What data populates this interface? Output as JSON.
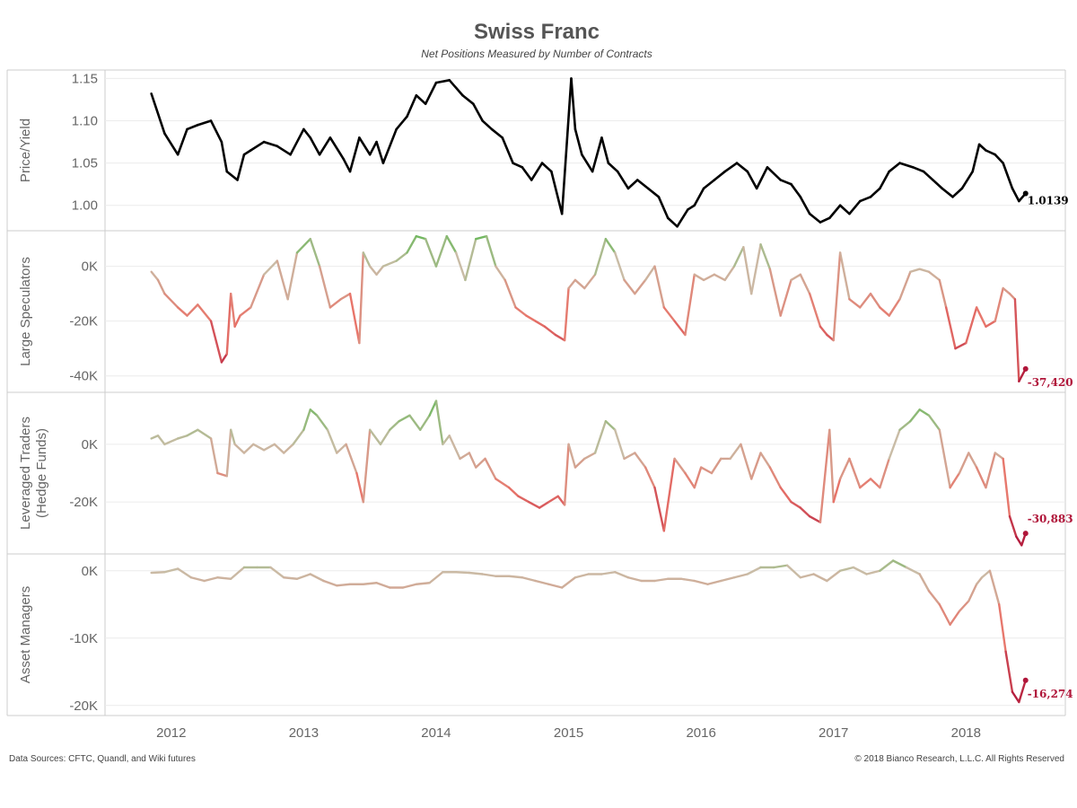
{
  "header": {
    "title": "Swiss Franc",
    "subtitle": "Net Positions Measured by Number of Contracts"
  },
  "footer": {
    "source": "Data Sources: CFTC, Quandl, and Wiki futures",
    "copyright": "© 2018 Bianco Research, L.L.C. All Rights Reserved"
  },
  "colors": {
    "price": "#000000",
    "positive": "#6db85c",
    "neutral": "#c9bca6",
    "negative": "#e8756a",
    "deep_negative": "#b0163a"
  },
  "chart_data": [
    {
      "type": "line",
      "ylabel": "Price/Yield",
      "ylim": [
        0.97,
        1.16
      ],
      "yticks": [
        1.0,
        1.05,
        1.1,
        1.15
      ],
      "ytick_labels": [
        "1.00",
        "1.05",
        "1.10",
        "1.15"
      ],
      "last_label": "1.0139",
      "color_mode": "solid",
      "series": [
        {
          "x": [
            2011.85,
            2011.95,
            2012.05,
            2012.12,
            2012.2,
            2012.3,
            2012.38,
            2012.42,
            2012.5,
            2012.55,
            2012.6,
            2012.7,
            2012.8,
            2012.9,
            2013.0,
            2013.05,
            2013.12,
            2013.2,
            2013.3,
            2013.35,
            2013.42,
            2013.5,
            2013.55,
            2013.6,
            2013.7,
            2013.78,
            2013.85,
            2013.92,
            2014.0,
            2014.1,
            2014.2,
            2014.28,
            2014.35,
            2014.42,
            2014.5,
            2014.58,
            2014.65,
            2014.72,
            2014.8,
            2014.87,
            2014.95,
            2015.02,
            2015.05,
            2015.1,
            2015.18,
            2015.25,
            2015.3,
            2015.37,
            2015.45,
            2015.52,
            2015.6,
            2015.68,
            2015.75,
            2015.82,
            2015.9,
            2015.95,
            2016.02,
            2016.1,
            2016.18,
            2016.27,
            2016.35,
            2016.42,
            2016.5,
            2016.6,
            2016.68,
            2016.75,
            2016.82,
            2016.9,
            2016.97,
            2017.05,
            2017.12,
            2017.2,
            2017.28,
            2017.35,
            2017.42,
            2017.5,
            2017.6,
            2017.68,
            2017.75,
            2017.82,
            2017.9,
            2017.97,
            2018.05,
            2018.1,
            2018.15,
            2018.22,
            2018.28,
            2018.35,
            2018.4,
            2018.45
          ],
          "y": [
            1.132,
            1.085,
            1.06,
            1.09,
            1.095,
            1.1,
            1.075,
            1.04,
            1.03,
            1.06,
            1.065,
            1.075,
            1.07,
            1.06,
            1.09,
            1.08,
            1.06,
            1.08,
            1.055,
            1.04,
            1.08,
            1.06,
            1.075,
            1.05,
            1.09,
            1.105,
            1.13,
            1.12,
            1.145,
            1.148,
            1.13,
            1.12,
            1.1,
            1.09,
            1.08,
            1.05,
            1.045,
            1.03,
            1.05,
            1.04,
            0.99,
            1.15,
            1.09,
            1.06,
            1.04,
            1.08,
            1.05,
            1.04,
            1.02,
            1.03,
            1.02,
            1.01,
            0.985,
            0.975,
            0.995,
            1.0,
            1.02,
            1.03,
            1.04,
            1.05,
            1.04,
            1.02,
            1.045,
            1.03,
            1.025,
            1.01,
            0.99,
            0.98,
            0.985,
            1.0,
            0.99,
            1.005,
            1.01,
            1.02,
            1.04,
            1.05,
            1.045,
            1.04,
            1.03,
            1.02,
            1.01,
            1.02,
            1.04,
            1.072,
            1.065,
            1.06,
            1.05,
            1.02,
            1.005,
            1.014
          ]
        }
      ]
    },
    {
      "type": "line",
      "ylabel": "Large Speculators",
      "ylim": [
        -46000,
        13000
      ],
      "yticks": [
        0,
        -20000,
        -40000
      ],
      "ytick_labels": [
        "0K",
        "-20K",
        "-40K"
      ],
      "last_label": "-37,420",
      "color_mode": "value",
      "series": [
        {
          "x": [
            2011.85,
            2011.9,
            2011.95,
            2012.05,
            2012.12,
            2012.2,
            2012.3,
            2012.38,
            2012.42,
            2012.45,
            2012.48,
            2012.52,
            2012.6,
            2012.7,
            2012.8,
            2012.88,
            2012.95,
            2013.05,
            2013.12,
            2013.2,
            2013.28,
            2013.35,
            2013.42,
            2013.45,
            2013.5,
            2013.55,
            2013.6,
            2013.7,
            2013.78,
            2013.85,
            2013.92,
            2014.0,
            2014.08,
            2014.15,
            2014.22,
            2014.3,
            2014.38,
            2014.45,
            2014.52,
            2014.6,
            2014.68,
            2014.75,
            2014.82,
            2014.9,
            2014.97,
            2015.0,
            2015.05,
            2015.12,
            2015.2,
            2015.28,
            2015.35,
            2015.42,
            2015.5,
            2015.58,
            2015.65,
            2015.72,
            2015.8,
            2015.88,
            2015.95,
            2016.02,
            2016.1,
            2016.18,
            2016.25,
            2016.32,
            2016.38,
            2016.45,
            2016.52,
            2016.6,
            2016.68,
            2016.75,
            2016.82,
            2016.9,
            2016.95,
            2017.0,
            2017.05,
            2017.12,
            2017.2,
            2017.28,
            2017.35,
            2017.42,
            2017.5,
            2017.58,
            2017.65,
            2017.72,
            2017.8,
            2017.85,
            2017.92,
            2018.0,
            2018.08,
            2018.15,
            2018.22,
            2018.28,
            2018.33,
            2018.37,
            2018.4,
            2018.45
          ],
          "y": [
            -2000,
            -5000,
            -10000,
            -15000,
            -18000,
            -14000,
            -20000,
            -35000,
            -32000,
            -10000,
            -22000,
            -18000,
            -15000,
            -3000,
            2000,
            -12000,
            5000,
            10000,
            0,
            -15000,
            -12000,
            -10000,
            -28000,
            5000,
            0,
            -3000,
            0,
            2000,
            5000,
            11000,
            10000,
            0,
            11000,
            5000,
            -5000,
            10000,
            11000,
            0,
            -5000,
            -15000,
            -18000,
            -20000,
            -22000,
            -25000,
            -27000,
            -8000,
            -5000,
            -8000,
            -3000,
            10000,
            5000,
            -5000,
            -10000,
            -5000,
            0,
            -15000,
            -20000,
            -25000,
            -3000,
            -5000,
            -3000,
            -5000,
            0,
            7000,
            -10000,
            8000,
            -1000,
            -18000,
            -5000,
            -3000,
            -10000,
            -22000,
            -25000,
            -27000,
            5000,
            -12000,
            -15000,
            -10000,
            -15000,
            -18000,
            -12000,
            -2000,
            -1000,
            -2000,
            -5000,
            -15000,
            -30000,
            -28000,
            -15000,
            -22000,
            -20000,
            -8000,
            -10000,
            -12000,
            -42000,
            -37420
          ]
        }
      ]
    },
    {
      "type": "line",
      "ylabel": "Leveraged Traders",
      "ylabel2": "(Hedge Funds)",
      "ylim": [
        -38000,
        18000
      ],
      "yticks": [
        0,
        -20000
      ],
      "ytick_labels": [
        "0K",
        "-20K"
      ],
      "last_label": "-30,883",
      "color_mode": "value",
      "series": [
        {
          "x": [
            2011.85,
            2011.9,
            2011.95,
            2012.05,
            2012.12,
            2012.2,
            2012.3,
            2012.35,
            2012.42,
            2012.45,
            2012.48,
            2012.55,
            2012.62,
            2012.7,
            2012.78,
            2012.85,
            2012.92,
            2013.0,
            2013.05,
            2013.1,
            2013.18,
            2013.25,
            2013.32,
            2013.4,
            2013.45,
            2013.5,
            2013.58,
            2013.65,
            2013.72,
            2013.8,
            2013.88,
            2013.95,
            2014.0,
            2014.05,
            2014.1,
            2014.18,
            2014.25,
            2014.3,
            2014.37,
            2014.45,
            2014.55,
            2014.62,
            2014.7,
            2014.78,
            2014.85,
            2014.92,
            2014.97,
            2015.0,
            2015.05,
            2015.12,
            2015.2,
            2015.28,
            2015.35,
            2015.42,
            2015.5,
            2015.58,
            2015.65,
            2015.72,
            2015.8,
            2015.88,
            2015.95,
            2016.0,
            2016.08,
            2016.15,
            2016.22,
            2016.3,
            2016.38,
            2016.45,
            2016.52,
            2016.6,
            2016.68,
            2016.75,
            2016.82,
            2016.9,
            2016.97,
            2017.0,
            2017.05,
            2017.12,
            2017.2,
            2017.28,
            2017.35,
            2017.42,
            2017.5,
            2017.58,
            2017.65,
            2017.72,
            2017.8,
            2017.88,
            2017.95,
            2018.02,
            2018.08,
            2018.15,
            2018.22,
            2018.28,
            2018.33,
            2018.38,
            2018.42,
            2018.45
          ],
          "y": [
            2000,
            3000,
            0,
            2000,
            3000,
            5000,
            2000,
            -10000,
            -11000,
            5000,
            0,
            -3000,
            0,
            -2000,
            0,
            -3000,
            0,
            5000,
            12000,
            10000,
            5000,
            -3000,
            0,
            -10000,
            -20000,
            5000,
            0,
            5000,
            8000,
            10000,
            5000,
            10000,
            15000,
            0,
            3000,
            -5000,
            -3000,
            -8000,
            -5000,
            -12000,
            -15000,
            -18000,
            -20000,
            -22000,
            -20000,
            -18000,
            -21000,
            0,
            -8000,
            -5000,
            -3000,
            8000,
            5000,
            -5000,
            -3000,
            -8000,
            -15000,
            -30000,
            -5000,
            -10000,
            -15000,
            -8000,
            -10000,
            -5000,
            -5000,
            0,
            -12000,
            -3000,
            -8000,
            -15000,
            -20000,
            -22000,
            -25000,
            -27000,
            5000,
            -20000,
            -12000,
            -5000,
            -15000,
            -12000,
            -15000,
            -5000,
            5000,
            8000,
            12000,
            10000,
            5000,
            -15000,
            -10000,
            -3000,
            -8000,
            -15000,
            -3000,
            -5000,
            -25000,
            -32000,
            -35000,
            -30883
          ]
        }
      ]
    },
    {
      "type": "line",
      "ylabel": "Asset Managers",
      "ylim": [
        -21500,
        2500
      ],
      "yticks": [
        0,
        -10000,
        -20000
      ],
      "ytick_labels": [
        "0K",
        "-10K",
        "-20K"
      ],
      "last_label": "-16,274",
      "color_mode": "value",
      "series": [
        {
          "x": [
            2011.85,
            2011.95,
            2012.05,
            2012.15,
            2012.25,
            2012.35,
            2012.45,
            2012.55,
            2012.65,
            2012.75,
            2012.85,
            2012.95,
            2013.05,
            2013.15,
            2013.25,
            2013.35,
            2013.45,
            2013.55,
            2013.65,
            2013.75,
            2013.85,
            2013.95,
            2014.05,
            2014.15,
            2014.25,
            2014.35,
            2014.45,
            2014.55,
            2014.65,
            2014.75,
            2014.85,
            2014.95,
            2015.05,
            2015.15,
            2015.25,
            2015.35,
            2015.45,
            2015.55,
            2015.65,
            2015.75,
            2015.85,
            2015.95,
            2016.05,
            2016.15,
            2016.25,
            2016.35,
            2016.45,
            2016.55,
            2016.65,
            2016.75,
            2016.85,
            2016.95,
            2017.05,
            2017.15,
            2017.25,
            2017.35,
            2017.45,
            2017.55,
            2017.65,
            2017.72,
            2017.8,
            2017.88,
            2017.95,
            2018.02,
            2018.08,
            2018.12,
            2018.18,
            2018.25,
            2018.3,
            2018.35,
            2018.4,
            2018.45
          ],
          "y": [
            -300,
            -200,
            300,
            -1000,
            -1500,
            -1000,
            -1200,
            500,
            500,
            500,
            -1000,
            -1200,
            -500,
            -1500,
            -2200,
            -2000,
            -2000,
            -1800,
            -2500,
            -2500,
            -2000,
            -1800,
            -200,
            -200,
            -300,
            -500,
            -800,
            -800,
            -1000,
            -1500,
            -2000,
            -2500,
            -1000,
            -500,
            -500,
            -200,
            -1000,
            -1500,
            -1500,
            -1200,
            -1200,
            -1500,
            -2000,
            -1500,
            -1000,
            -500,
            500,
            500,
            800,
            -1000,
            -500,
            -1500,
            0,
            500,
            -500,
            0,
            1500,
            500,
            -500,
            -3000,
            -5000,
            -8000,
            -6000,
            -4500,
            -2000,
            -1000,
            0,
            -5000,
            -12000,
            -18000,
            -19500,
            -16274
          ]
        }
      ]
    }
  ],
  "x_axis": {
    "range": [
      2011.5,
      2018.75
    ],
    "ticks": [
      2012,
      2013,
      2014,
      2015,
      2016,
      2017,
      2018
    ],
    "tick_labels": [
      "2012",
      "2013",
      "2014",
      "2015",
      "2016",
      "2017",
      "2018"
    ]
  }
}
